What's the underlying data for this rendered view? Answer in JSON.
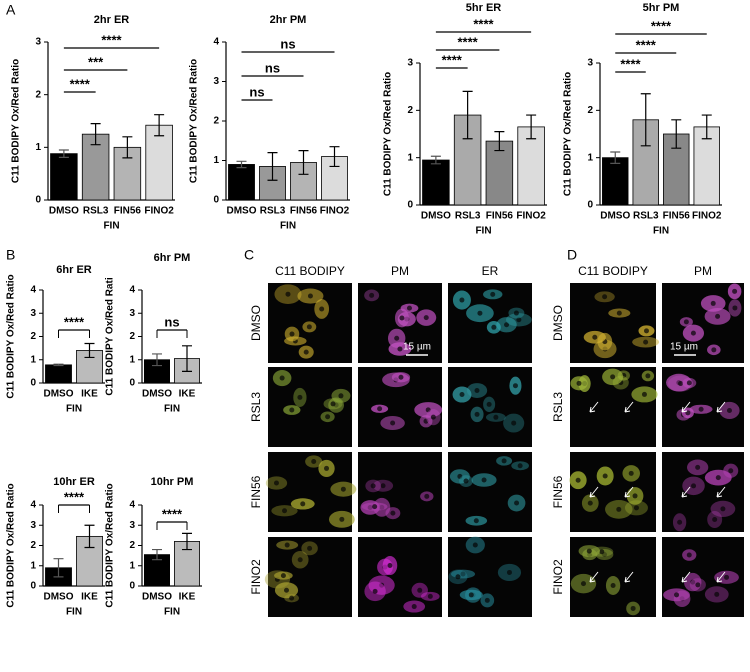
{
  "panel_labels": [
    "A",
    "B",
    "C",
    "D"
  ],
  "chart_data": [
    {
      "type": "bar",
      "title": "2hr ER",
      "y_label": "C11 BODIPY Ox/Red Ratio",
      "x_label": "FIN",
      "categories": [
        "DMSO",
        "RSL3",
        "FIN56",
        "FINO2"
      ],
      "values": [
        0.88,
        1.25,
        1.0,
        1.42
      ],
      "errors": [
        0.07,
        0.2,
        0.2,
        0.2
      ],
      "colors": [
        "#000000",
        "#999999",
        "#b4b4b4",
        "#dcdcdc"
      ],
      "ylim": [
        0,
        3
      ],
      "yticks": [
        0,
        1,
        2,
        3
      ],
      "significance": [
        "****",
        "***",
        "****"
      ]
    },
    {
      "type": "bar",
      "title": "2hr PM",
      "y_label": "C11 BODIPY Ox/Red Ratio",
      "x_label": "FIN",
      "categories": [
        "DMSO",
        "RSL3",
        "FIN56",
        "FINO2"
      ],
      "values": [
        0.9,
        0.85,
        0.95,
        1.1
      ],
      "errors": [
        0.08,
        0.35,
        0.3,
        0.25
      ],
      "colors": [
        "#000000",
        "#999999",
        "#b4b4b4",
        "#dcdcdc"
      ],
      "ylim": [
        0,
        4
      ],
      "yticks": [
        0,
        1,
        2,
        3,
        4
      ],
      "significance": [
        "ns",
        "ns",
        "ns"
      ]
    },
    {
      "type": "bar",
      "title": "5hr ER",
      "y_label": "C11 BODIPY Ox/Red Ratio",
      "x_label": "FIN",
      "categories": [
        "DMSO",
        "RSL3",
        "FIN56",
        "FINO2"
      ],
      "values": [
        0.95,
        1.9,
        1.35,
        1.65
      ],
      "errors": [
        0.08,
        0.5,
        0.2,
        0.25
      ],
      "colors": [
        "#000000",
        "#aaaaaa",
        "#888888",
        "#dcdcdc"
      ],
      "ylim": [
        0,
        3
      ],
      "yticks": [
        0,
        1,
        2,
        3
      ],
      "significance": [
        "****",
        "****",
        "****"
      ]
    },
    {
      "type": "bar",
      "title": "5hr PM",
      "y_label": "C11 BODIPY Ox/Red Ratio",
      "x_label": "FIN",
      "categories": [
        "DMSO",
        "RSL3",
        "FIN56",
        "FINO2"
      ],
      "values": [
        1.0,
        1.8,
        1.5,
        1.65
      ],
      "errors": [
        0.12,
        0.55,
        0.3,
        0.25
      ],
      "colors": [
        "#000000",
        "#aaaaaa",
        "#888888",
        "#dcdcdc"
      ],
      "ylim": [
        0,
        3
      ],
      "yticks": [
        0,
        1,
        2,
        3
      ],
      "significance": [
        "****",
        "****",
        "****"
      ]
    },
    {
      "type": "bar",
      "title": "6hr ER",
      "y_label": "C11 BODIPY Ox/Red Ratio",
      "x_label": "FIN",
      "categories": [
        "DMSO",
        "IKE"
      ],
      "values": [
        0.78,
        1.4
      ],
      "errors": [
        0.03,
        0.3
      ],
      "colors": [
        "#000000",
        "#bbbbbb"
      ],
      "ylim": [
        0,
        4
      ],
      "yticks": [
        0,
        1,
        2,
        3,
        4
      ],
      "significance": [
        "****"
      ]
    },
    {
      "type": "bar",
      "title": "6hr PM",
      "y_label": "C11 BODIPY Ox/Red Rati",
      "x_label": "FIN",
      "categories": [
        "DMSO",
        "IKE"
      ],
      "values": [
        1.0,
        1.05
      ],
      "errors": [
        0.25,
        0.55
      ],
      "colors": [
        "#000000",
        "#bbbbbb"
      ],
      "ylim": [
        0,
        4
      ],
      "yticks": [
        0,
        1,
        2,
        3,
        4
      ],
      "significance": [
        "ns"
      ]
    },
    {
      "type": "bar",
      "title": "10hr ER",
      "y_label": "C11 BODIPY Ox/Red Ratio",
      "x_label": "FIN",
      "categories": [
        "DMSO",
        "IKE"
      ],
      "values": [
        0.9,
        2.45
      ],
      "errors": [
        0.45,
        0.55
      ],
      "colors": [
        "#000000",
        "#bbbbbb"
      ],
      "ylim": [
        0,
        4
      ],
      "yticks": [
        0,
        1,
        2,
        3,
        4
      ],
      "significance": [
        "****"
      ]
    },
    {
      "type": "bar",
      "title": "10hr PM",
      "y_label": "C11 BODIPY Ox/Red Ratio",
      "x_label": "FIN",
      "categories": [
        "DMSO",
        "IKE"
      ],
      "values": [
        1.55,
        2.2
      ],
      "errors": [
        0.25,
        0.4
      ],
      "colors": [
        "#000000",
        "#bbbbbb"
      ],
      "ylim": [
        0,
        4
      ],
      "yticks": [
        0,
        1,
        2,
        3,
        4
      ],
      "significance": [
        "****"
      ]
    }
  ],
  "microscopy": {
    "C": {
      "columns": [
        "C11 BODIPY",
        "PM",
        "ER"
      ],
      "rows": [
        "DMSO",
        "RSL3",
        "FIN56",
        "FINO2"
      ],
      "scale_bar": "15 µm"
    },
    "D": {
      "columns": [
        "C11 BODIPY",
        "PM"
      ],
      "rows": [
        "DMSO",
        "RSL3",
        "FIN56",
        "FINO2"
      ],
      "scale_bar": "15 µm"
    }
  }
}
